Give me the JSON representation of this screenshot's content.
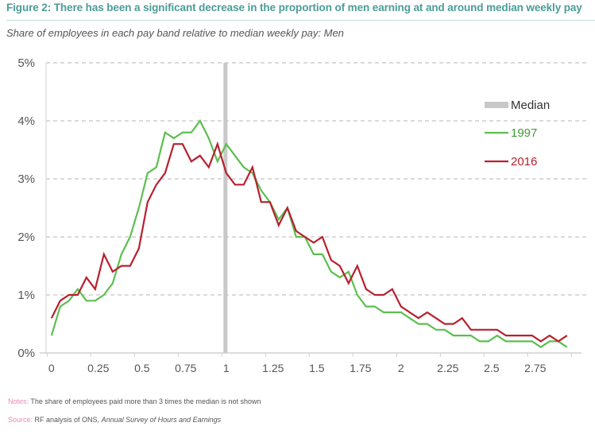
{
  "header": {
    "title": "Figure 2:  There has been a significant decrease in the proportion of men earning at and around median weekly pay",
    "subtitle": "Share of employees in each pay band relative to median weekly pay: Men"
  },
  "footer": {
    "notes_label": "Notes:",
    "notes_text": " The share of employees paid more than 3 times the median is not shown",
    "source_label": "Source:",
    "source_text": " RF analysis of ONS, ",
    "source_italic": "Annual Survey of Hours and Earnings"
  },
  "colors": {
    "title": "#4b9c97",
    "series_1997": "#5cbf4f",
    "series_2016": "#b8202e",
    "median": "#c8c8c8",
    "notes_label": "#e88ab5"
  },
  "chart_data": {
    "type": "line",
    "title": "Share of employees in each pay band relative to median weekly pay: Men",
    "xlabel": "",
    "ylabel": "",
    "x": [
      0,
      0.05,
      0.1,
      0.15,
      0.2,
      0.25,
      0.3,
      0.35,
      0.4,
      0.45,
      0.5,
      0.55,
      0.6,
      0.65,
      0.7,
      0.75,
      0.8,
      0.85,
      0.9,
      0.95,
      1,
      1.05,
      1.1,
      1.15,
      1.2,
      1.25,
      1.3,
      1.35,
      1.4,
      1.45,
      1.5,
      1.55,
      1.6,
      1.65,
      1.7,
      1.75,
      1.8,
      1.85,
      1.9,
      1.95,
      2,
      2.05,
      2.1,
      2.15,
      2.2,
      2.25,
      2.3,
      2.35,
      2.4,
      2.45,
      2.5,
      2.55,
      2.6,
      2.65,
      2.7,
      2.75,
      2.8,
      2.85,
      2.9,
      2.95
    ],
    "x_tick_labels": [
      "0",
      "0.25",
      "0.5",
      "0.75",
      "1",
      "1.25",
      "1.5",
      "1.75",
      "2",
      "2.25",
      "2.5",
      "2.75"
    ],
    "x_tick_every": 5,
    "y_ticks": [
      0,
      1,
      2,
      3,
      4,
      5
    ],
    "y_tick_labels": [
      "0%",
      "1%",
      "2%",
      "3%",
      "4%",
      "5%"
    ],
    "ylim": [
      0,
      5
    ],
    "grid": "horizontal dashed",
    "legend_position": "top-right",
    "median_marker": {
      "label": "Median",
      "x": 1
    },
    "series": [
      {
        "name": "1997",
        "values": [
          0.3,
          0.8,
          0.9,
          1.1,
          0.9,
          0.9,
          1.0,
          1.2,
          1.7,
          2.0,
          2.5,
          3.1,
          3.2,
          3.8,
          3.7,
          3.8,
          3.8,
          4.0,
          3.7,
          3.3,
          3.6,
          3.4,
          3.2,
          3.1,
          2.8,
          2.6,
          2.3,
          2.5,
          2.0,
          2.0,
          1.7,
          1.7,
          1.4,
          1.3,
          1.4,
          1.0,
          0.8,
          0.8,
          0.7,
          0.7,
          0.7,
          0.6,
          0.5,
          0.5,
          0.4,
          0.4,
          0.3,
          0.3,
          0.3,
          0.2,
          0.2,
          0.3,
          0.2,
          0.2,
          0.2,
          0.2,
          0.1,
          0.2,
          0.2,
          0.1
        ]
      },
      {
        "name": "2016",
        "values": [
          0.6,
          0.9,
          1.0,
          1.0,
          1.3,
          1.1,
          1.7,
          1.4,
          1.5,
          1.5,
          1.8,
          2.6,
          2.9,
          3.1,
          3.6,
          3.6,
          3.3,
          3.4,
          3.2,
          3.6,
          3.1,
          2.9,
          2.9,
          3.2,
          2.6,
          2.6,
          2.2,
          2.5,
          2.1,
          2.0,
          1.9,
          2.0,
          1.6,
          1.5,
          1.2,
          1.5,
          1.1,
          1.0,
          1.0,
          1.1,
          0.8,
          0.7,
          0.6,
          0.7,
          0.6,
          0.5,
          0.5,
          0.6,
          0.4,
          0.4,
          0.4,
          0.4,
          0.3,
          0.3,
          0.3,
          0.3,
          0.2,
          0.3,
          0.2,
          0.3
        ]
      }
    ]
  }
}
